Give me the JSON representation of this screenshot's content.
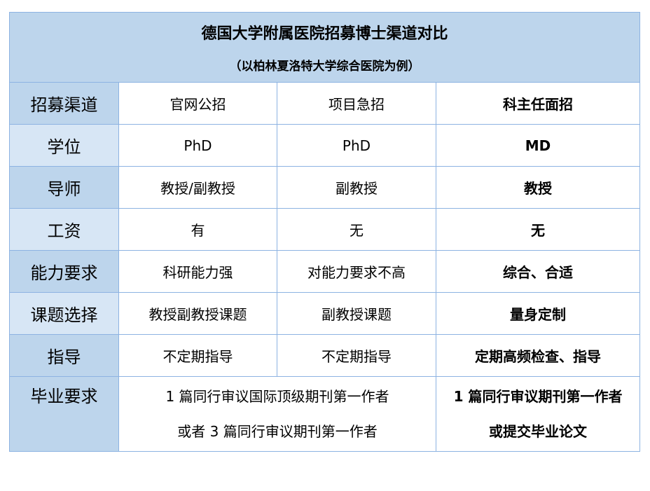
{
  "header": {
    "title": "德国大学附属医院招募博士渠道对比",
    "subtitle": "（以柏林夏洛特大学综合医院为例）"
  },
  "colors": {
    "header_bg": "#bdd5ec",
    "row_header_dark": "#bdd5ec",
    "row_header_light": "#d7e6f5",
    "border": "#8db3e2"
  },
  "rows": [
    {
      "label": "招募渠道",
      "c1": "官网公招",
      "c2": "项目急招",
      "c3": "科主任面招"
    },
    {
      "label": "学位",
      "c1": "PhD",
      "c2": "PhD",
      "c3": "MD"
    },
    {
      "label": "导师",
      "c1": "教授/副教授",
      "c2": "副教授",
      "c3": "教授"
    },
    {
      "label": "工资",
      "c1": "有",
      "c2": "无",
      "c3": "无"
    },
    {
      "label": "能力要求",
      "c1": "科研能力强",
      "c2": "对能力要求不高",
      "c3": "综合、合适"
    },
    {
      "label": "课题选择",
      "c1": "教授副教授课题",
      "c2": "副教授课题",
      "c3": "量身定制"
    },
    {
      "label": "指导",
      "c1": "不定期指导",
      "c2": "不定期指导",
      "c3": "定期高频检查、指导"
    }
  ],
  "graduation": {
    "label": "毕业要求",
    "merged_line1": "1 篇同行审议国际顶级期刊第一作者",
    "merged_line2": "或者 3 篇同行审议期刊第一作者",
    "c3_line1": "1 篇同行审议期刊第一作者",
    "c3_line2": "或提交毕业论文"
  }
}
